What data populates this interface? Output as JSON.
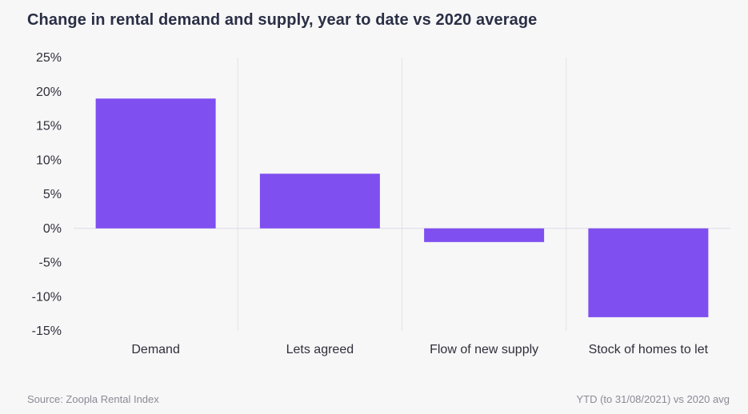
{
  "chart_data": {
    "type": "bar",
    "title": "Change in rental demand and supply, year to date vs 2020 average",
    "categories": [
      "Demand",
      "Lets agreed",
      "Flow of new supply",
      "Stock of homes to let"
    ],
    "series": [
      {
        "values": [
          19,
          8,
          -2,
          -13
        ]
      }
    ],
    "yticks": [
      "25%",
      "20%",
      "15%",
      "10%",
      "5%",
      "0%",
      "-5%",
      "-10%",
      "-15%"
    ],
    "ylim": [
      -15,
      25
    ],
    "xlabel": "",
    "ylabel": "",
    "grid": "vertical separators between categories",
    "bar_color": "#7f4ff0"
  },
  "footer": {
    "source": "Source: Zoopla Rental Index",
    "note": "YTD (to 31/08/2021) vs 2020 avg"
  }
}
